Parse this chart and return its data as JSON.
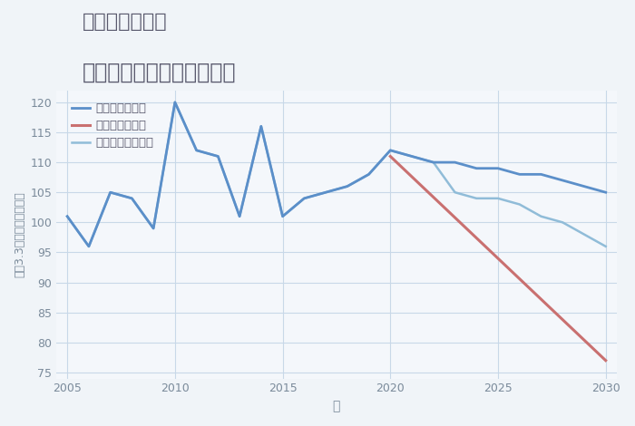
{
  "title_line1": "千葉県愛宕駅の",
  "title_line2": "中古マンションの価格推移",
  "xlabel": "年",
  "ylabel": "坪（3.3㎡）単価（万円）",
  "yticks": [
    75,
    80,
    85,
    90,
    95,
    100,
    105,
    110,
    115,
    120
  ],
  "ylim": [
    74,
    122
  ],
  "xlim": [
    2004.5,
    2030.5
  ],
  "xticks": [
    2005,
    2010,
    2015,
    2020,
    2025,
    2030
  ],
  "fig_bg_color": "#f0f4f8",
  "plot_bg_color": "#f4f7fb",
  "grid_color": "#c8d8e8",
  "title_color": "#5a5a6e",
  "tick_color": "#7a8a9a",
  "good_scenario": {
    "label": "グッドシナリオ",
    "color": "#5b8fc9",
    "x": [
      2005,
      2006,
      2007,
      2008,
      2009,
      2010,
      2011,
      2012,
      2013,
      2014,
      2015,
      2016,
      2017,
      2018,
      2019,
      2020,
      2021,
      2022,
      2023,
      2024,
      2025,
      2026,
      2027,
      2028,
      2029,
      2030
    ],
    "y": [
      101,
      96,
      105,
      104,
      99,
      120,
      112,
      111,
      101,
      116,
      101,
      104,
      105,
      106,
      108,
      112,
      111,
      110,
      110,
      109,
      109,
      108,
      108,
      107,
      106,
      105
    ],
    "linewidth": 2.0
  },
  "bad_scenario": {
    "label": "バッドシナリオ",
    "color": "#c97070",
    "x": [
      2020,
      2030
    ],
    "y": [
      111,
      77
    ],
    "linewidth": 2.2
  },
  "normal_scenario": {
    "label": "ノーマルシナリオ",
    "color": "#90bcd8",
    "x": [
      2005,
      2006,
      2007,
      2008,
      2009,
      2010,
      2011,
      2012,
      2013,
      2014,
      2015,
      2016,
      2017,
      2018,
      2019,
      2020,
      2021,
      2022,
      2023,
      2024,
      2025,
      2026,
      2027,
      2028,
      2029,
      2030
    ],
    "y": [
      101,
      96,
      105,
      104,
      99,
      120,
      112,
      111,
      101,
      116,
      101,
      104,
      105,
      106,
      108,
      112,
      111,
      110,
      105,
      104,
      104,
      103,
      101,
      100,
      98,
      96
    ],
    "linewidth": 1.8
  }
}
